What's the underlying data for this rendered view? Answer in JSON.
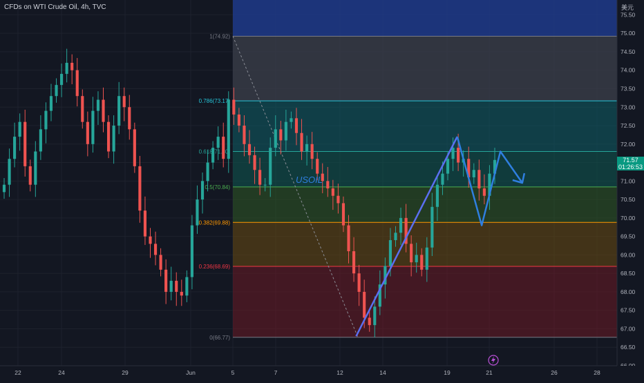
{
  "title": "CFDs on WTI Crude Oil, 4h, TVC",
  "currency_label": "美元",
  "price_tag": {
    "value": "71.57",
    "countdown": "01:26:53"
  },
  "annotation_text": "USOIL",
  "colors": {
    "background": "#131722",
    "up": "#26a69a",
    "down": "#ef5350",
    "projection": "#2f7fe0",
    "impulse": "#5b6ff0"
  },
  "chart_data": {
    "type": "candlestick",
    "title": "CFDs on WTI Crude Oil, 4h, TVC",
    "ylim": [
      66.0,
      75.9
    ],
    "y_ticks": [
      "75.50",
      "75.00",
      "74.50",
      "74.00",
      "73.50",
      "73.00",
      "72.50",
      "72.00",
      "71.50",
      "71.00",
      "70.50",
      "70.00",
      "69.50",
      "69.00",
      "68.50",
      "68.00",
      "67.50",
      "67.00",
      "66.50",
      "66.00"
    ],
    "x_ticks": [
      "22",
      "24",
      "29",
      "Jun",
      "5",
      "7",
      "12",
      "14",
      "19",
      "21",
      "26",
      "28"
    ],
    "close_series": [
      70.9,
      71.6,
      72.2,
      72.6,
      71.4,
      70.9,
      71.8,
      72.4,
      72.9,
      73.3,
      73.6,
      73.9,
      74.2,
      74.0,
      73.3,
      72.6,
      72.0,
      72.9,
      73.2,
      72.6,
      71.8,
      72.5,
      73.3,
      73.0,
      72.4,
      71.4,
      70.2,
      69.5,
      69.3,
      69.0,
      68.6,
      68.0,
      68.3,
      68.0,
      67.9,
      68.4,
      69.8,
      70.5,
      71.0,
      71.5,
      71.9,
      72.2,
      71.6,
      73.2,
      72.8,
      72.5,
      72.0,
      71.7,
      71.3,
      70.9,
      70.9,
      71.9,
      72.4,
      72.1,
      72.6,
      72.7,
      72.3,
      71.8,
      72.0,
      71.6,
      71.2,
      71.0,
      70.8,
      70.6,
      70.4,
      69.8,
      69.1,
      68.5,
      68.0,
      67.3,
      67.1,
      67.6,
      68.2,
      68.7,
      69.4,
      69.6,
      70.0,
      69.3,
      68.8,
      69.0,
      68.6,
      69.2,
      70.3,
      70.9,
      71.2,
      71.6,
      71.9,
      71.5,
      71.6,
      71.1,
      71.3,
      70.8,
      70.6,
      71.2,
      71.57
    ],
    "fibonacci": {
      "levels": [
        {
          "ratio": "1",
          "price": 74.92,
          "label": "1(74.92)",
          "color": "#787b86"
        },
        {
          "ratio": "0.786",
          "price": 73.17,
          "label": "0.786(73.17)",
          "color": "#26c6da"
        },
        {
          "ratio": "0.618",
          "price": 71.8,
          "label": "0.618(71.80)",
          "color": "#26a69a"
        },
        {
          "ratio": "0.5",
          "price": 70.84,
          "label": "0.5(70.84)",
          "color": "#4caf50"
        },
        {
          "ratio": "0.382",
          "price": 69.88,
          "label": "0.382(69.88)",
          "color": "#ff9800"
        },
        {
          "ratio": "0.236",
          "price": 68.69,
          "label": "0.236(68.69)",
          "color": "#f23645"
        },
        {
          "ratio": "0",
          "price": 66.77,
          "label": "0(66.77)",
          "color": "#787b86"
        }
      ],
      "bands": [
        {
          "from": 74.92,
          "to": 75.9,
          "color": "#1e3a8a",
          "opacity": 0.85
        },
        {
          "from": 73.17,
          "to": 74.92,
          "color": "#3a3d48",
          "opacity": 0.8
        },
        {
          "from": 71.8,
          "to": 73.17,
          "color": "#0e5f66",
          "opacity": 0.55
        },
        {
          "from": 70.84,
          "to": 71.8,
          "color": "#0e5a52",
          "opacity": 0.55
        },
        {
          "from": 69.88,
          "to": 70.84,
          "color": "#2f5a24",
          "opacity": 0.55
        },
        {
          "from": 68.69,
          "to": 69.88,
          "color": "#6a4a10",
          "opacity": 0.55
        },
        {
          "from": 66.77,
          "to": 68.69,
          "color": "#6b1a24",
          "opacity": 0.55
        }
      ]
    },
    "impulse_path": [
      {
        "x_frac": 0.553,
        "y": 66.8
      },
      {
        "x_frac": 0.71,
        "y": 72.2
      }
    ],
    "projection_path": [
      {
        "x_frac": 0.71,
        "y": 72.2
      },
      {
        "x_frac": 0.748,
        "y": 69.8
      },
      {
        "x_frac": 0.777,
        "y": 71.8
      },
      {
        "x_frac": 0.811,
        "y": 70.95
      }
    ]
  }
}
